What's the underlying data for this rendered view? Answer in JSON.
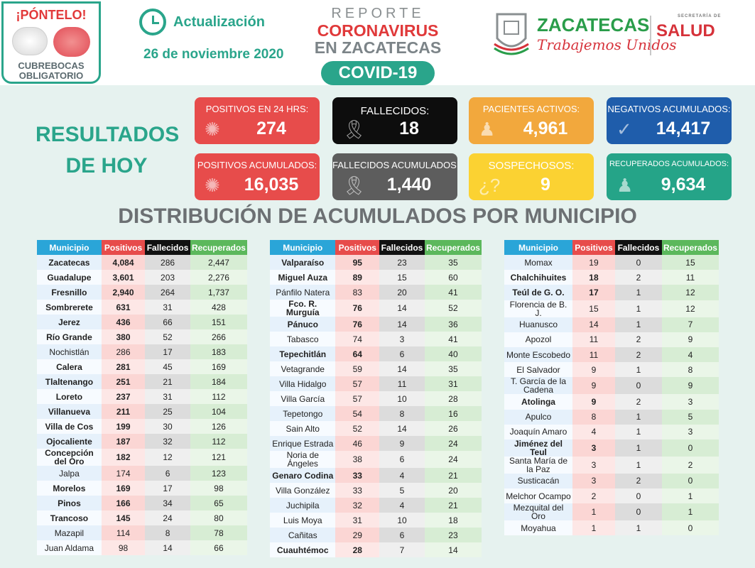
{
  "header": {
    "badge_title": "¡PÓNTELO!",
    "badge_line1": "CUBREBOCAS",
    "badge_line2": "OBLIGATORIO",
    "update_label": "Actualización",
    "date": "26 de noviembre 2020",
    "report_line1": "REPORTE",
    "report_line2": "CORONAVIRUS",
    "report_line3": "EN ZACATECAS",
    "covid_label": "COVID-19",
    "state_name": "ZACATECAS",
    "state_slogan": "Trabajemos Unidos",
    "salud_label": "SALUD",
    "salud_small": "SECRETARÍA DE"
  },
  "results_title_line1": "RESULTADOS",
  "results_title_line2": "DE HOY",
  "cards": {
    "positivos_24": {
      "label": "POSITIVOS EN 24 HRS:",
      "value": "274"
    },
    "fallecidos": {
      "label": "FALLECIDOS:",
      "value": "18"
    },
    "activos": {
      "label": "PACIENTES ACTIVOS:",
      "value": "4,961"
    },
    "negativos": {
      "label": "NEGATIVOS ACUMULADOS:",
      "value": "14,417"
    },
    "positivos_acum": {
      "label": "POSITIVOS ACUMULADOS:",
      "value": "16,035"
    },
    "fallecidos_acum": {
      "label": "FALLECIDOS ACUMULADOS:",
      "value": "1,440"
    },
    "sospechosos": {
      "label": "SOSPECHOSOS:",
      "value": "9"
    },
    "recuperados": {
      "label": "RECUPERADOS ACUMULADOS:",
      "value": "9,634"
    }
  },
  "distribution_title": "DISTRIBUCIÓN DE ACUMULADOS POR MUNICIPIO",
  "table_headers": {
    "municipio": "Municipio",
    "positivos": "Positivos",
    "fallecidos": "Fallecidos",
    "recuperados": "Recuperados"
  },
  "table1": [
    [
      "Zacatecas",
      "4,084",
      "286",
      "2,447"
    ],
    [
      "Guadalupe",
      "3,601",
      "203",
      "2,276"
    ],
    [
      "Fresnillo",
      "2,940",
      "264",
      "1,737"
    ],
    [
      "Sombrerete",
      "631",
      "31",
      "428"
    ],
    [
      "Jerez",
      "436",
      "66",
      "151"
    ],
    [
      "Río Grande",
      "380",
      "52",
      "266"
    ],
    [
      "Nochistlán",
      "286",
      "17",
      "183"
    ],
    [
      "Calera",
      "281",
      "45",
      "169"
    ],
    [
      "Tlaltenango",
      "251",
      "21",
      "184"
    ],
    [
      "Loreto",
      "237",
      "31",
      "112"
    ],
    [
      "Villanueva",
      "211",
      "25",
      "104"
    ],
    [
      "Villa de Cos",
      "199",
      "30",
      "126"
    ],
    [
      "Ojocaliente",
      "187",
      "32",
      "112"
    ],
    [
      "Concepción del Oro",
      "182",
      "12",
      "121"
    ],
    [
      "Jalpa",
      "174",
      "6",
      "123"
    ],
    [
      "Morelos",
      "169",
      "17",
      "98"
    ],
    [
      "Pinos",
      "166",
      "34",
      "65"
    ],
    [
      "Trancoso",
      "145",
      "24",
      "80"
    ],
    [
      "Mazapil",
      "114",
      "8",
      "78"
    ],
    [
      "Juan Aldama",
      "98",
      "14",
      "66"
    ]
  ],
  "table2": [
    [
      "Valparaíso",
      "95",
      "23",
      "35"
    ],
    [
      "Miguel Auza",
      "89",
      "15",
      "60"
    ],
    [
      "Pánfilo Natera",
      "83",
      "20",
      "41"
    ],
    [
      "Fco. R. Murguía",
      "76",
      "14",
      "52"
    ],
    [
      "Pánuco",
      "76",
      "14",
      "36"
    ],
    [
      "Tabasco",
      "74",
      "3",
      "41"
    ],
    [
      "Tepechitlán",
      "64",
      "6",
      "40"
    ],
    [
      "Vetagrande",
      "59",
      "14",
      "35"
    ],
    [
      "Villa Hidalgo",
      "57",
      "11",
      "31"
    ],
    [
      "Villa García",
      "57",
      "10",
      "28"
    ],
    [
      "Tepetongo",
      "54",
      "8",
      "16"
    ],
    [
      "Sain Alto",
      "52",
      "14",
      "26"
    ],
    [
      "Enrique Estrada",
      "46",
      "9",
      "24"
    ],
    [
      "Noria de Ángeles",
      "38",
      "6",
      "24"
    ],
    [
      "Genaro Codina",
      "33",
      "4",
      "21"
    ],
    [
      "Villa González",
      "33",
      "5",
      "20"
    ],
    [
      "Juchipila",
      "32",
      "4",
      "21"
    ],
    [
      "Luis Moya",
      "31",
      "10",
      "18"
    ],
    [
      "Cañitas",
      "29",
      "6",
      "23"
    ],
    [
      "Cuauhtémoc",
      "28",
      "7",
      "14"
    ]
  ],
  "table3": [
    [
      "Momax",
      "19",
      "0",
      "15"
    ],
    [
      "Chalchihuites",
      "18",
      "2",
      "11"
    ],
    [
      "Teúl de G. O.",
      "17",
      "1",
      "12"
    ],
    [
      "Florencia de B. J.",
      "15",
      "1",
      "12"
    ],
    [
      "Huanusco",
      "14",
      "1",
      "7"
    ],
    [
      "Apozol",
      "11",
      "2",
      "9"
    ],
    [
      "Monte Escobedo",
      "11",
      "2",
      "4"
    ],
    [
      "El Salvador",
      "9",
      "1",
      "8"
    ],
    [
      "T. García de la Cadena",
      "9",
      "0",
      "9"
    ],
    [
      "Atolinga",
      "9",
      "2",
      "3"
    ],
    [
      "Apulco",
      "8",
      "1",
      "5"
    ],
    [
      "Joaquín Amaro",
      "4",
      "1",
      "3"
    ],
    [
      "Jiménez del Teul",
      "3",
      "1",
      "0"
    ],
    [
      "Santa María de la Paz",
      "3",
      "1",
      "2"
    ],
    [
      "Susticacán",
      "3",
      "2",
      "0"
    ],
    [
      "Melchor Ocampo",
      "2",
      "0",
      "1"
    ],
    [
      "Mezquital del Oro",
      "1",
      "0",
      "1"
    ],
    [
      "Moyahua",
      "1",
      "1",
      "0"
    ]
  ]
}
